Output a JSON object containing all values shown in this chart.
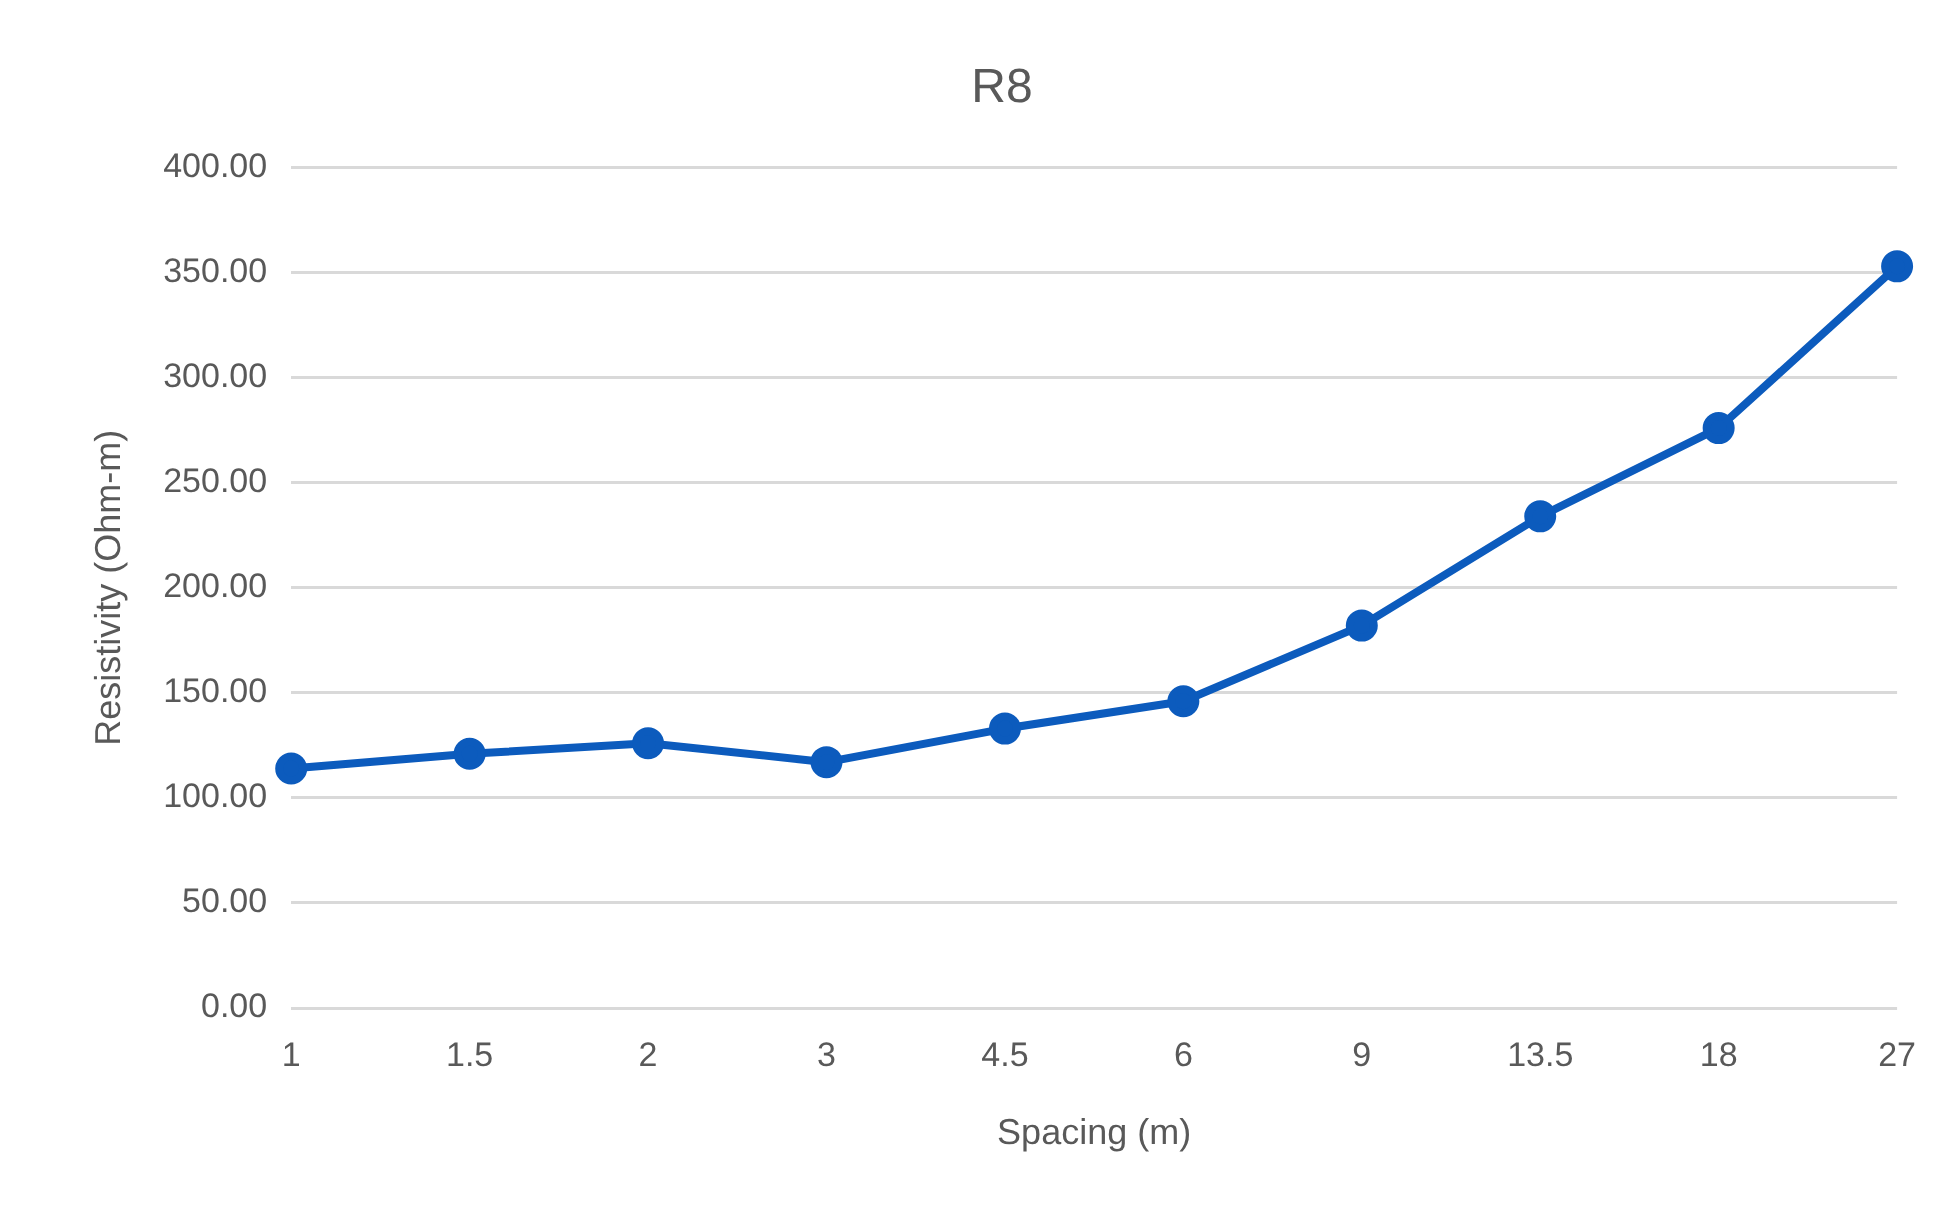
{
  "chart_data": {
    "type": "line",
    "title": "R8",
    "xlabel": "Spacing (m)",
    "ylabel": "Resistivity (Ohm-m)",
    "categories": [
      "1",
      "1.5",
      "2",
      "3",
      "4.5",
      "6",
      "9",
      "13.5",
      "18",
      "27"
    ],
    "series": [
      {
        "color": "#0c5bbd",
        "values": [
          114,
          121,
          126,
          117,
          133,
          146,
          182,
          234,
          276,
          353
        ]
      }
    ],
    "ylim": [
      0,
      400
    ],
    "yticks": [
      {
        "value": 0,
        "label": "0.00"
      },
      {
        "value": 50,
        "label": "50.00"
      },
      {
        "value": 100,
        "label": "100.00"
      },
      {
        "value": 150,
        "label": "150.00"
      },
      {
        "value": 200,
        "label": "200.00"
      },
      {
        "value": 250,
        "label": "250.00"
      },
      {
        "value": 300,
        "label": "300.00"
      },
      {
        "value": 350,
        "label": "350.00"
      },
      {
        "value": 400,
        "label": "400.00"
      }
    ],
    "grid": "y",
    "legend": false,
    "marker": "circle",
    "line_style": "solid"
  }
}
